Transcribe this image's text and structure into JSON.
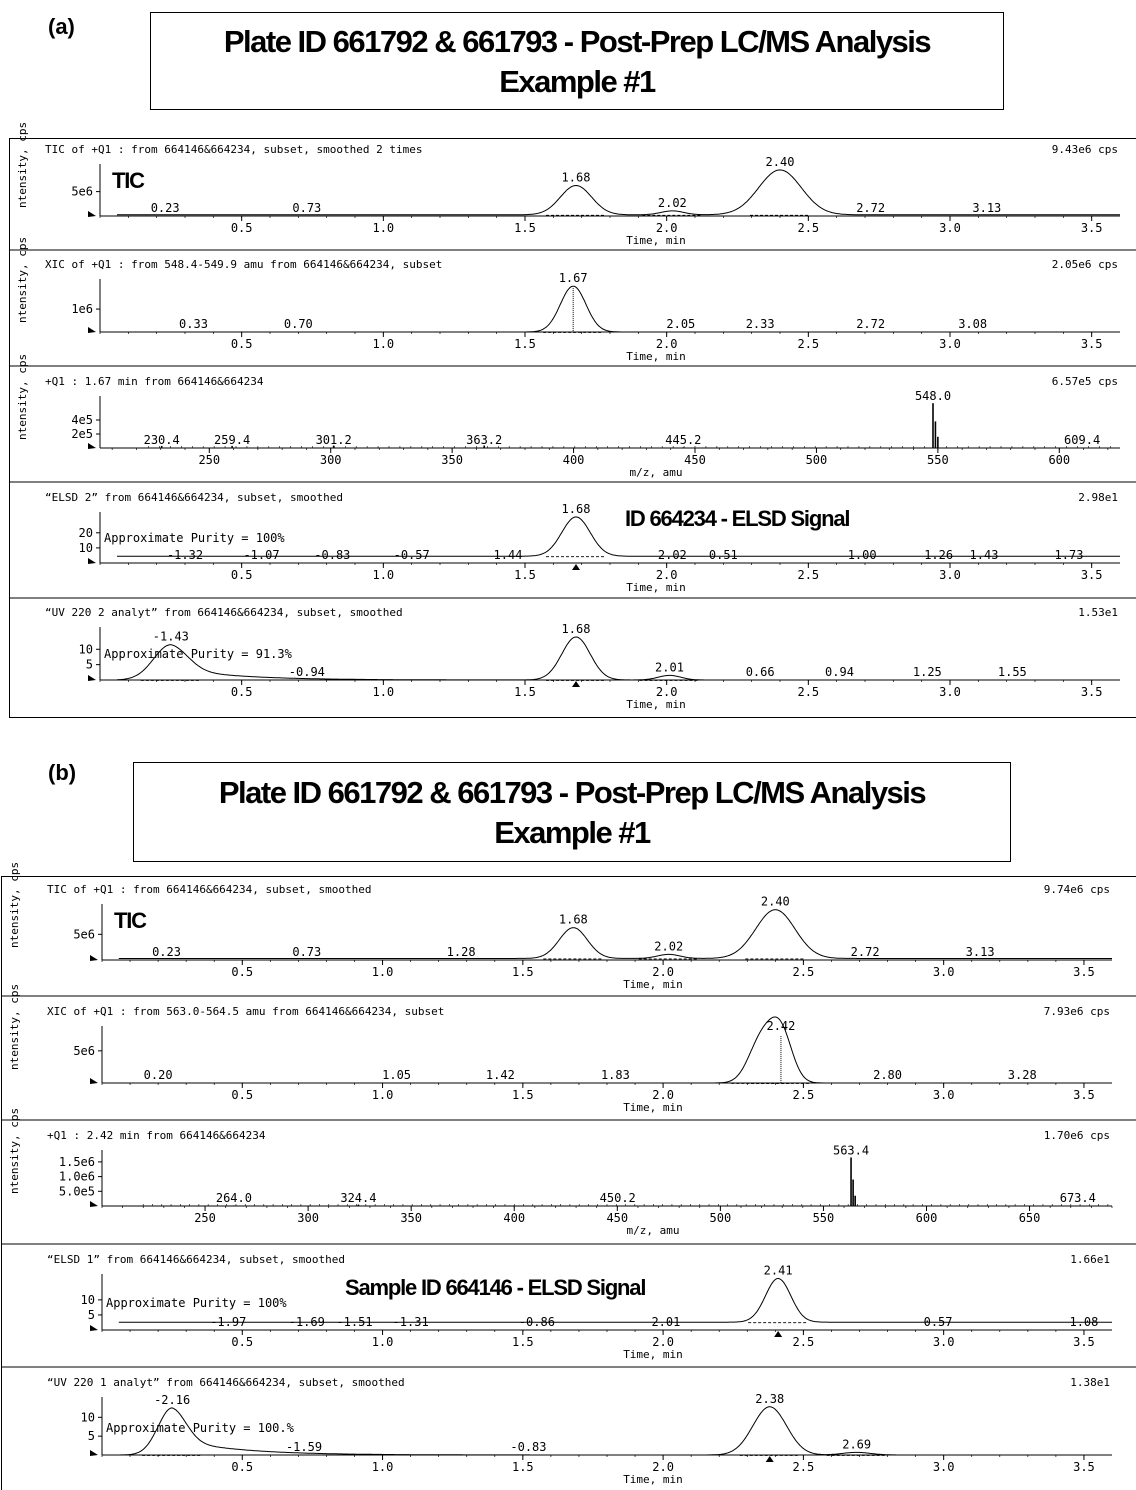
{
  "figures": [
    {
      "label": "(a)",
      "title_line1": "Plate ID 661792 & 661793 - Post-Prep LC/MS Analysis",
      "title_line2": "Example #1"
    },
    {
      "label": "(b)",
      "title_line1": "Plate ID 661792 & 661793 - Post-Prep LC/MS Analysis",
      "title_line2": "Example #1"
    }
  ],
  "chart_data": [
    {
      "type": "line",
      "figure": "(a)",
      "header": "TIC of +Q1 : from 664146&664234, subset, smoothed 2 times",
      "max_label": "9.43e6 cps",
      "ylabel": "Intensity, cps",
      "xlabel": "Time, min",
      "overlay": "TIC",
      "xlim": [
        0.0,
        3.6
      ],
      "ylim": [
        0,
        9430000.0
      ],
      "x_ticks": [
        "0.5",
        "1.0",
        "1.5",
        "2.0",
        "2.5",
        "3.0",
        "3.5"
      ],
      "y_ticks": [
        "5e6"
      ],
      "y_tick_values": [
        5000000.0
      ],
      "peaks": [
        {
          "x": 1.68,
          "h": 6000000.0,
          "w": 0.055,
          "label": "1.68"
        },
        {
          "x": 2.02,
          "h": 800000.0,
          "w": 0.04,
          "label": "2.02"
        },
        {
          "x": 2.4,
          "h": 9200000.0,
          "w": 0.075,
          "label": "2.40"
        }
      ],
      "peak_labels": [
        {
          "x": 0.23,
          "label": "0.23"
        },
        {
          "x": 0.73,
          "label": "0.73"
        },
        {
          "x": 2.72,
          "label": "2.72"
        },
        {
          "x": 3.13,
          "label": "3.13"
        }
      ],
      "baseline": 250000.0
    },
    {
      "type": "line",
      "figure": "(a)",
      "header": "XIC of +Q1 : from 548.4-549.9 amu from 664146&664234, subset",
      "max_label": "2.05e6 cps",
      "ylabel": "Intensity, cps",
      "xlabel": "Time, min",
      "xlim": [
        0.0,
        3.6
      ],
      "ylim": [
        0,
        2050000.0
      ],
      "x_ticks": [
        "0.5",
        "1.0",
        "1.5",
        "2.0",
        "2.5",
        "3.0",
        "3.5"
      ],
      "y_ticks": [
        "1e6"
      ],
      "y_tick_values": [
        1000000.0
      ],
      "peaks": [
        {
          "x": 1.67,
          "h": 2000000.0,
          "w": 0.045,
          "label": "1.67",
          "marker": true
        }
      ],
      "peak_labels": [
        {
          "x": 0.33,
          "label": "0.33"
        },
        {
          "x": 0.7,
          "label": "0.70"
        },
        {
          "x": 2.05,
          "label": "2.05"
        },
        {
          "x": 2.33,
          "label": "2.33"
        },
        {
          "x": 2.72,
          "label": "2.72"
        },
        {
          "x": 3.08,
          "label": "3.08"
        }
      ],
      "baseline": 0
    },
    {
      "type": "bar",
      "figure": "(a)",
      "header": "+Q1 : 1.67 min from 664146&664234",
      "max_label": "6.57e5 cps",
      "ylabel": "Intensity, cps",
      "xlabel": "m/z, amu",
      "xlim": [
        205,
        625
      ],
      "ylim": [
        0,
        657000.0
      ],
      "x_ticks": [
        "250",
        "300",
        "350",
        "400",
        "450",
        "500",
        "550",
        "600"
      ],
      "y_ticks": [
        "2e5",
        "4e5"
      ],
      "y_tick_values": [
        200000.0,
        400000.0
      ],
      "sticks": [
        {
          "x": 230.4,
          "h": 30000.0
        },
        {
          "x": 259.4,
          "h": 30000.0
        },
        {
          "x": 301.2,
          "h": 35000.0
        },
        {
          "x": 363.2,
          "h": 35000.0
        },
        {
          "x": 445.2,
          "h": 10000.0
        },
        {
          "x": 548.0,
          "h": 640000.0
        },
        {
          "x": 549.0,
          "h": 380000.0
        },
        {
          "x": 550.0,
          "h": 160000.0
        },
        {
          "x": 609.4,
          "h": 5000.0
        }
      ],
      "peak_labels": [
        {
          "x": 230.4,
          "label": "230.4"
        },
        {
          "x": 259.4,
          "label": "259.4"
        },
        {
          "x": 301.2,
          "label": "301.2"
        },
        {
          "x": 363.2,
          "label": "363.2"
        },
        {
          "x": 445.2,
          "label": "445.2"
        },
        {
          "x": 548.0,
          "label": "548.0",
          "top": true
        },
        {
          "x": 609.4,
          "label": "609.4"
        }
      ]
    },
    {
      "type": "line",
      "figure": "(a)",
      "header": "“ELSD 2” from 664146&664234, subset, smoothed",
      "max_label": "2.98e1",
      "ylabel": "",
      "xlabel": "Time, min",
      "overlay": "ID 664234 - ELSD Signal",
      "purity": "Approximate Purity =  100%",
      "xlim": [
        0.0,
        3.6
      ],
      "ylim": [
        0,
        29.8
      ],
      "x_ticks": [
        "0.5",
        "1.0",
        "1.5",
        "2.0",
        "2.5",
        "3.0",
        "3.5"
      ],
      "y_ticks": [
        "10",
        "20"
      ],
      "y_tick_values": [
        10,
        20
      ],
      "peaks": [
        {
          "x": 1.68,
          "h": 26,
          "w": 0.05,
          "label": "1.68",
          "arrow": true
        }
      ],
      "peak_labels": [
        {
          "x": 0.3,
          "label": "-1.32"
        },
        {
          "x": 0.57,
          "label": "-1.07"
        },
        {
          "x": 0.82,
          "label": "-0.83"
        },
        {
          "x": 1.1,
          "label": "-0.57"
        },
        {
          "x": 1.44,
          "label": "1.44"
        },
        {
          "x": 2.02,
          "label": "2.02"
        },
        {
          "x": 2.2,
          "label": "0.51"
        },
        {
          "x": 2.69,
          "label": "1.00"
        },
        {
          "x": 2.96,
          "label": "1.26"
        },
        {
          "x": 3.12,
          "label": "1.43"
        },
        {
          "x": 3.42,
          "label": "1.73"
        }
      ],
      "baseline": 4.5
    },
    {
      "type": "line",
      "figure": "(a)",
      "header": "“UV 220 2 analyt” from 664146&664234, subset, smoothed",
      "max_label": "1.53e1",
      "ylabel": "",
      "xlabel": "Time, min",
      "purity": "Approximate Purity = 91.3%",
      "xlim": [
        0.0,
        3.6
      ],
      "ylim": [
        0,
        15.3
      ],
      "x_ticks": [
        "0.5",
        "1.0",
        "1.5",
        "2.0",
        "2.5",
        "3.0",
        "3.5"
      ],
      "y_ticks": [
        "5",
        "10"
      ],
      "y_tick_values": [
        5,
        10
      ],
      "peaks": [
        {
          "x": 0.25,
          "h": 11.5,
          "w": 0.06,
          "tail": 0.22,
          "label": "-1.43"
        },
        {
          "x": 1.68,
          "h": 14,
          "w": 0.05,
          "label": "1.68",
          "arrow": true
        },
        {
          "x": 2.01,
          "h": 1.5,
          "w": 0.04,
          "label": "2.01"
        }
      ],
      "peak_labels": [
        {
          "x": 0.73,
          "label": "-0.94"
        },
        {
          "x": 2.33,
          "label": "0.66"
        },
        {
          "x": 2.61,
          "label": "0.94"
        },
        {
          "x": 2.92,
          "label": "1.25"
        },
        {
          "x": 3.22,
          "label": "1.55"
        }
      ],
      "baseline": 0
    },
    {
      "type": "line",
      "figure": "(b)",
      "header": "TIC of +Q1 : from 664146&664234, subset, smoothed",
      "max_label": "9.74e6 cps",
      "ylabel": "Intensity, cps",
      "xlabel": "Time, min",
      "overlay": "TIC",
      "xlim": [
        0.0,
        3.6
      ],
      "ylim": [
        0,
        9740000.0
      ],
      "x_ticks": [
        "0.5",
        "1.0",
        "1.5",
        "2.0",
        "2.5",
        "3.0",
        "3.5"
      ],
      "y_ticks": [
        "5e6"
      ],
      "y_tick_values": [
        5000000.0
      ],
      "peaks": [
        {
          "x": 1.68,
          "h": 6000000.0,
          "w": 0.05,
          "label": "1.68"
        },
        {
          "x": 2.02,
          "h": 800000.0,
          "w": 0.04,
          "label": "2.02"
        },
        {
          "x": 2.4,
          "h": 9500000.0,
          "w": 0.07,
          "label": "2.40"
        }
      ],
      "peak_labels": [
        {
          "x": 0.23,
          "label": "0.23"
        },
        {
          "x": 0.73,
          "label": "0.73"
        },
        {
          "x": 1.28,
          "label": "1.28"
        },
        {
          "x": 2.72,
          "label": "2.72"
        },
        {
          "x": 3.13,
          "label": "3.13"
        }
      ],
      "baseline": 300000.0
    },
    {
      "type": "line",
      "figure": "(b)",
      "header": "XIC of +Q1 : from 563.0-564.5 amu from 664146&664234, subset",
      "max_label": "7.93e6 cps",
      "ylabel": "Intensity, cps",
      "xlabel": "Time, min",
      "xlim": [
        0.0,
        3.6
      ],
      "ylim": [
        0,
        7930000.0
      ],
      "x_ticks": [
        "0.5",
        "1.0",
        "1.5",
        "2.0",
        "2.5",
        "3.0",
        "3.5"
      ],
      "y_ticks": [
        "5e6"
      ],
      "y_tick_values": [
        5000000.0
      ],
      "peaks": [
        {
          "x": 2.35,
          "h": 6600000.0,
          "w": 0.045
        },
        {
          "x": 2.42,
          "h": 7600000.0,
          "w": 0.04,
          "label": "2.42",
          "marker": true
        }
      ],
      "peak_labels": [
        {
          "x": 0.2,
          "label": "0.20"
        },
        {
          "x": 1.05,
          "label": "1.05"
        },
        {
          "x": 1.42,
          "label": "1.42"
        },
        {
          "x": 1.83,
          "label": "1.83"
        },
        {
          "x": 2.8,
          "label": "2.80"
        },
        {
          "x": 3.28,
          "label": "3.28"
        }
      ],
      "baseline": 0
    },
    {
      "type": "bar",
      "figure": "(b)",
      "header": "+Q1 : 2.42 min from 664146&664234",
      "max_label": "1.70e6 cps",
      "ylabel": "Intensity, cps",
      "xlabel": "m/z, amu",
      "xlim": [
        200,
        690
      ],
      "ylim": [
        0,
        1700000.0
      ],
      "x_ticks": [
        "250",
        "300",
        "350",
        "400",
        "450",
        "500",
        "550",
        "600",
        "650"
      ],
      "y_ticks": [
        "5.0e5",
        "1.0e6",
        "1.5e6"
      ],
      "y_tick_values": [
        500000.0,
        1000000.0,
        1500000.0
      ],
      "sticks": [
        {
          "x": 264.0,
          "h": 20000.0
        },
        {
          "x": 324.4,
          "h": 50000.0
        },
        {
          "x": 450.2,
          "h": 10000.0
        },
        {
          "x": 563.4,
          "h": 1650000.0
        },
        {
          "x": 564.4,
          "h": 900000.0
        },
        {
          "x": 565.4,
          "h": 350000.0
        },
        {
          "x": 673.4,
          "h": 5000.0
        }
      ],
      "peak_labels": [
        {
          "x": 264.0,
          "label": "264.0"
        },
        {
          "x": 324.4,
          "label": "324.4"
        },
        {
          "x": 450.2,
          "label": "450.2"
        },
        {
          "x": 563.4,
          "label": "563.4",
          "top": true
        },
        {
          "x": 673.4,
          "label": "673.4"
        }
      ]
    },
    {
      "type": "line",
      "figure": "(b)",
      "header": "“ELSD 1” from 664146&664234, subset, smoothed",
      "max_label": "1.66e1",
      "ylabel": "",
      "xlabel": "Time, min",
      "overlay": "Sample ID 664146 - ELSD Signal",
      "purity": "Approximate Purity =  100%",
      "xlim": [
        0.0,
        3.6
      ],
      "ylim": [
        0,
        16.6
      ],
      "x_ticks": [
        "0.5",
        "1.0",
        "1.5",
        "2.0",
        "2.5",
        "3.0",
        "3.5"
      ],
      "y_ticks": [
        "5",
        "10"
      ],
      "y_tick_values": [
        5,
        10
      ],
      "peaks": [
        {
          "x": 2.41,
          "h": 14.5,
          "w": 0.045,
          "label": "2.41",
          "arrow": true
        }
      ],
      "peak_labels": [
        {
          "x": 0.45,
          "label": "-1.97"
        },
        {
          "x": 0.73,
          "label": "-1.69"
        },
        {
          "x": 0.9,
          "label": "-1.51"
        },
        {
          "x": 1.1,
          "label": "-1.31"
        },
        {
          "x": 1.55,
          "label": "-0.86"
        },
        {
          "x": 2.01,
          "label": "2.01"
        },
        {
          "x": 2.98,
          "label": "0.57"
        },
        {
          "x": 3.5,
          "label": "1.08"
        }
      ],
      "baseline": 2.6
    },
    {
      "type": "line",
      "figure": "(b)",
      "header": "“UV 220 1 analyt” from 664146&664234, subset, smoothed",
      "max_label": "1.38e1",
      "ylabel": "",
      "xlabel": "Time, min",
      "purity": "Approximate Purity = 100.%",
      "xlim": [
        0.0,
        3.6
      ],
      "ylim": [
        0,
        13.8
      ],
      "x_ticks": [
        "0.5",
        "1.0",
        "1.5",
        "2.0",
        "2.5",
        "3.0",
        "3.5"
      ],
      "y_ticks": [
        "5",
        "10"
      ],
      "y_tick_values": [
        5,
        10
      ],
      "peaks": [
        {
          "x": 0.25,
          "h": 12.5,
          "w": 0.05,
          "tail": 0.22,
          "label": "-2.16"
        },
        {
          "x": 2.38,
          "h": 12.8,
          "w": 0.06,
          "label": "2.38",
          "arrow": true
        },
        {
          "x": 2.69,
          "h": 0.7,
          "w": 0.05,
          "label": "2.69"
        }
      ],
      "peak_labels": [
        {
          "x": 0.72,
          "label": "-1.59"
        },
        {
          "x": 1.52,
          "label": "-0.83"
        }
      ],
      "baseline": 0
    }
  ]
}
